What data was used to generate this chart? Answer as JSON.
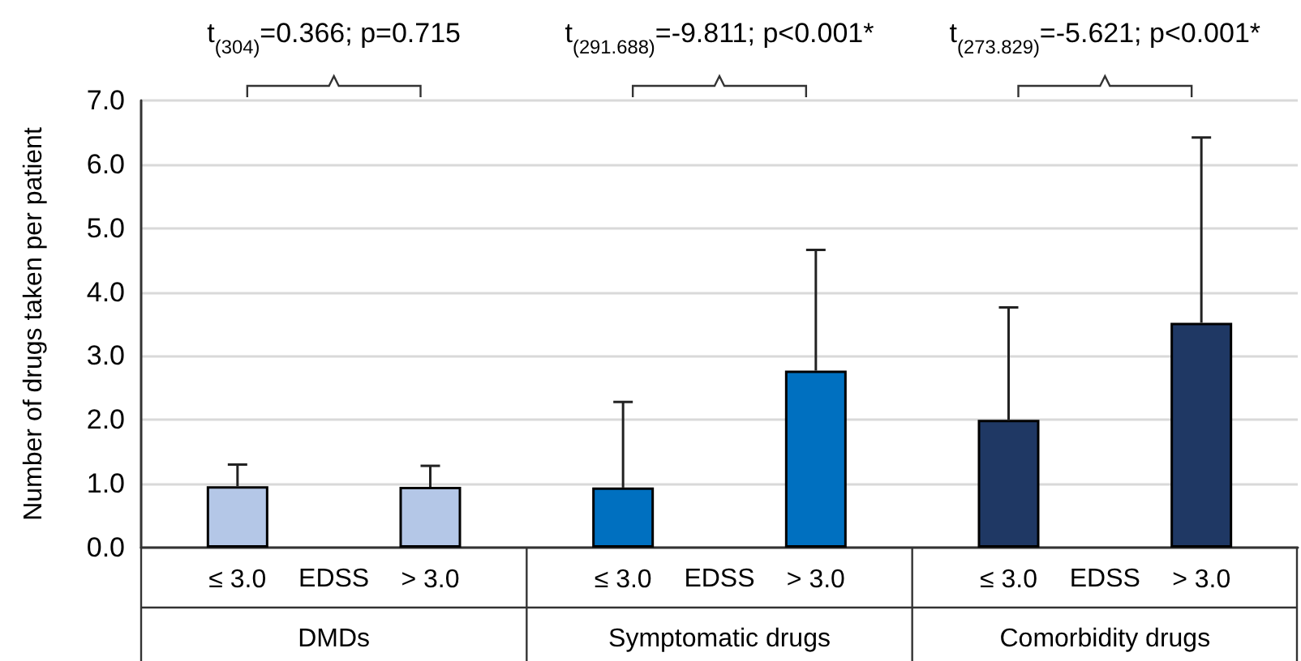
{
  "chart_data": {
    "type": "bar",
    "ylabel": "Number of drugs taken per patient",
    "categories": [
      "≤ 3.0",
      "> 3.0",
      "≤ 3.0",
      "> 3.0",
      "≤ 3.0",
      "> 3.0"
    ],
    "values": [
      0.96,
      0.95,
      0.94,
      2.77,
      2.0,
      3.52
    ],
    "errors": [
      [
        0.96,
        1.3
      ],
      [
        0.95,
        1.28
      ],
      [
        0.94,
        2.28
      ],
      [
        2.77,
        4.66
      ],
      [
        2.0,
        3.76
      ],
      [
        3.52,
        6.42
      ]
    ],
    "colors": [
      "#b4c7e7",
      "#b4c7e7",
      "#0070c0",
      "#0070c0",
      "#1f3864",
      "#1f3864"
    ],
    "ylim": [
      0,
      7
    ],
    "yticks": [
      {
        "value": 0,
        "label": "0.0"
      },
      {
        "value": 1,
        "label": "1.0"
      },
      {
        "value": 2,
        "label": "2.0"
      },
      {
        "value": 3,
        "label": "3.0"
      },
      {
        "value": 4,
        "label": "4.0"
      },
      {
        "value": 5,
        "label": "5.0"
      },
      {
        "value": 6,
        "label": "6.0"
      },
      {
        "value": 7,
        "label": "7.0"
      }
    ],
    "grid": "y",
    "annotations": [
      "t$_{(304)}$=0.366; p=0.715",
      "t$_{(291.688)}$=-9.811; p<0.001*",
      "t$_{(273.829)}$=-5.621; p<0.001*",
      "EDSS",
      "EDSS",
      "EDSS",
      "DMDs",
      "Symptomatic drugs",
      "Comorbidity drugs"
    ]
  }
}
